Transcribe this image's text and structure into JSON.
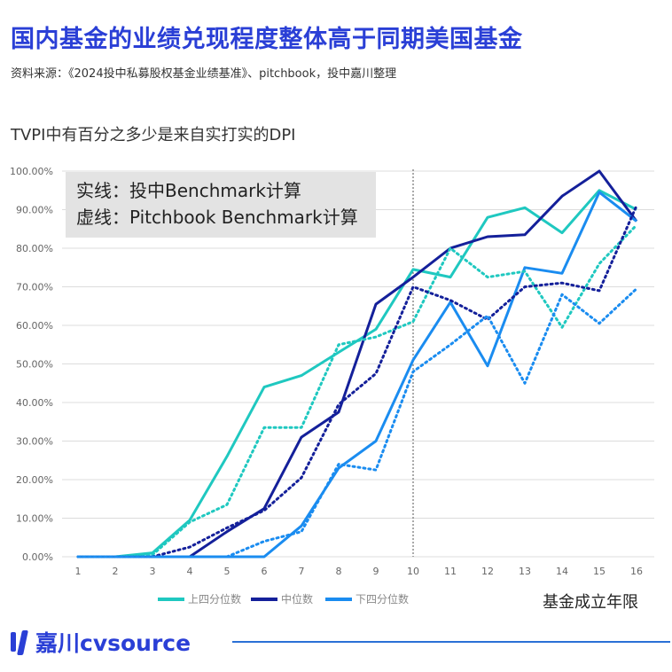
{
  "header": {
    "title": "国内基金的业绩兑现程度整体高于同期美国基金",
    "source": "资料来源：《2024投中私募股权基金业绩基准》、pitchbook，投中嘉川整理"
  },
  "annotation": {
    "line1": "实线：投中Benchmark计算",
    "line2": "虚线：Pitchbook Benchmark计算"
  },
  "logo": {
    "text": "嘉川cvsource"
  },
  "colors": {
    "upper": "#1fc8c0",
    "median": "#14209a",
    "lower": "#1a8cf0",
    "title": "#2a3fd6"
  },
  "chart_data": {
    "type": "line",
    "title": "TVPI中有百分之多少是来自实打实的DPI",
    "xlabel": "基金成立年限",
    "ylabel": "",
    "x": [
      1,
      2,
      3,
      4,
      5,
      6,
      7,
      8,
      9,
      10,
      11,
      12,
      13,
      14,
      15,
      16
    ],
    "ylim": [
      0,
      100
    ],
    "yticks": [
      "0.00%",
      "10.00%",
      "20.00%",
      "30.00%",
      "40.00%",
      "50.00%",
      "60.00%",
      "70.00%",
      "80.00%",
      "90.00%",
      "100.00%"
    ],
    "vline_x": 10,
    "legend_position": "bottom",
    "legend": [
      "上四分位数",
      "中位数",
      "下四分位数"
    ],
    "series": [
      {
        "name": "上四分位数",
        "style": "solid",
        "color": "#1fc8c0",
        "values": [
          0,
          0,
          1,
          9.5,
          26,
          44,
          47,
          53,
          59,
          74.5,
          72.5,
          88,
          90.5,
          84,
          95,
          90
        ]
      },
      {
        "name": "中位数",
        "style": "solid",
        "color": "#14209a",
        "values": [
          0,
          0,
          0,
          0,
          6.5,
          12.5,
          31,
          37.5,
          65.5,
          72.5,
          80,
          83,
          83.5,
          93.5,
          100,
          87
        ]
      },
      {
        "name": "下四分位数",
        "style": "solid",
        "color": "#1a8cf0",
        "values": [
          0,
          0,
          0,
          0,
          0,
          0,
          8,
          23,
          30,
          51,
          66,
          49.5,
          75,
          73.5,
          94.5,
          87
        ]
      },
      {
        "name": "上四分位数",
        "style": "dotted",
        "color": "#1fc8c0",
        "values": [
          0,
          0,
          0.5,
          9,
          13.5,
          33.5,
          33.5,
          55,
          57,
          61,
          80,
          72.5,
          74,
          59.5,
          76,
          86
        ]
      },
      {
        "name": "中位数",
        "style": "dotted",
        "color": "#14209a",
        "values": [
          0,
          0,
          0,
          2.5,
          7.5,
          12,
          20.5,
          39.5,
          47.5,
          70,
          66.5,
          61.5,
          70,
          71,
          69,
          91
        ]
      },
      {
        "name": "下四分位数",
        "style": "dotted",
        "color": "#1a8cf0",
        "values": [
          0,
          0,
          0,
          0,
          0,
          4,
          6.5,
          24,
          22.5,
          48,
          55,
          62.5,
          45,
          68,
          60.5,
          69.5
        ]
      }
    ]
  }
}
